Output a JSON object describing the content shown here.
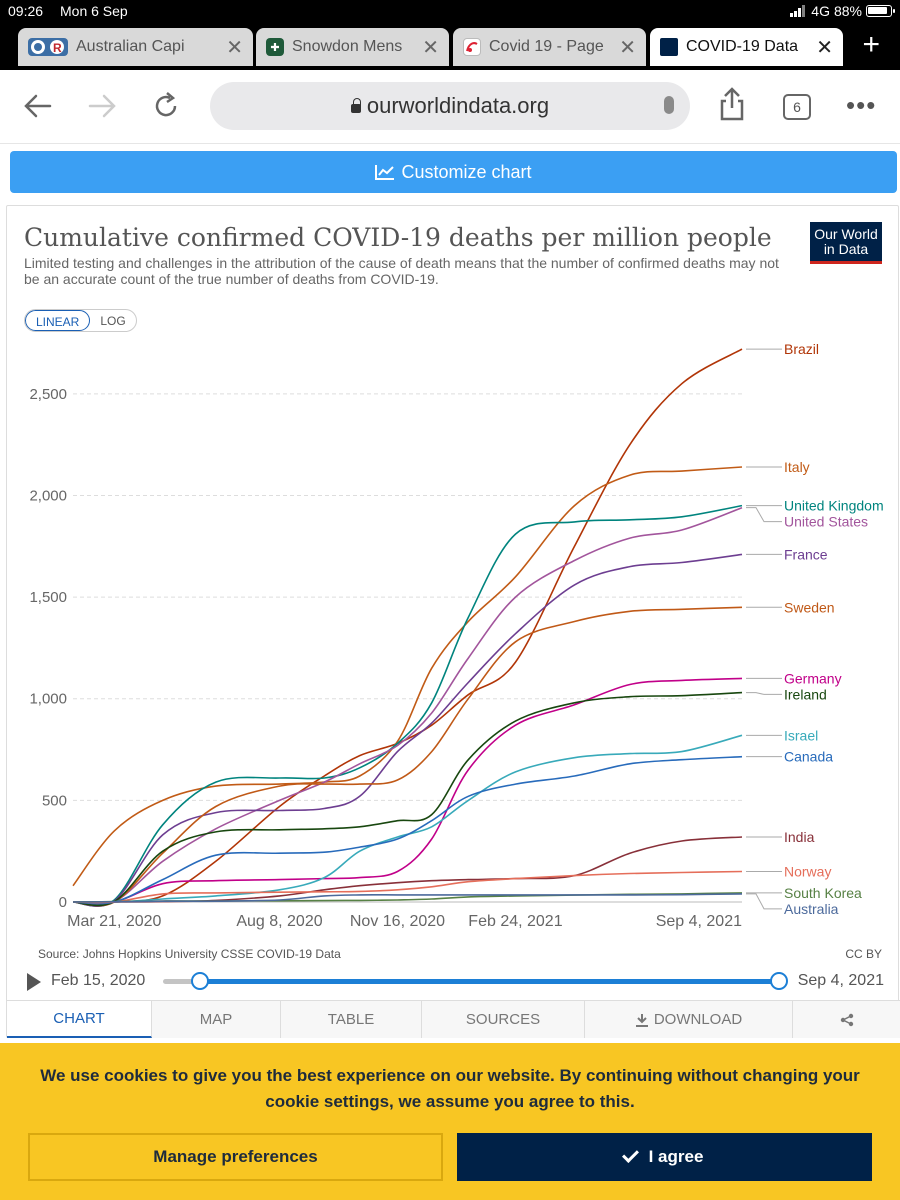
{
  "status": {
    "time": "09:26",
    "date": "Mon 6 Sep",
    "network": "4G",
    "battery": "88%"
  },
  "tabs": [
    {
      "label": "Australian Capi",
      "icon": "australian-capital-icon",
      "active": false
    },
    {
      "label": "Snowdon Mens",
      "icon": "snowdon-icon",
      "active": false
    },
    {
      "label": "Covid 19 - Page",
      "icon": "covid-page-icon",
      "active": false
    },
    {
      "label": "COVID-19 Data",
      "icon": "owid-favicon-icon",
      "active": true
    }
  ],
  "address": {
    "url": "ourworldindata.org",
    "tab_count": "6"
  },
  "customize": {
    "label": "Customize chart"
  },
  "chart": {
    "title": "Cumulative confirmed COVID-19 deaths per million people",
    "subtitle": "Limited testing and challenges in the attribution of the cause of death means that the number of confirmed deaths may not be an accurate count of the true number of deaths from COVID-19.",
    "logo_line1": "Our World",
    "logo_line2": "in Data",
    "scale_linear": "LINEAR",
    "scale_log": "LOG",
    "source": "Source: Johns Hopkins University CSSE COVID-19 Data",
    "license": "CC BY"
  },
  "timeline": {
    "start": "Feb 15, 2020",
    "end": "Sep 4, 2021"
  },
  "bottom_tabs": {
    "chart": "CHART",
    "map": "MAP",
    "table": "TABLE",
    "sources": "SOURCES",
    "download": "DOWNLOAD"
  },
  "cookie": {
    "text": "We use cookies to give you the best experience on our website. By continuing without changing your cookie settings, we assume you agree to this.",
    "manage": "Manage preferences",
    "agree": "I agree"
  },
  "chart_data": {
    "type": "line",
    "x_ticks": [
      "Mar 21, 2020",
      "Aug 8, 2020",
      "Nov 16, 2020",
      "Feb 24, 2021",
      "Sep 4, 2021"
    ],
    "y_ticks": [
      "0",
      "500",
      "1,000",
      "1,500",
      "2,000",
      "2,500"
    ],
    "ylim": [
      0,
      2750
    ],
    "xlim": [
      "2020-02-15",
      "2021-09-04"
    ],
    "grid": "horizontal dashed",
    "x": [
      "2020-02-15",
      "2020-03-21",
      "2020-05-01",
      "2020-06-15",
      "2020-08-08",
      "2020-09-15",
      "2020-10-15",
      "2020-11-16",
      "2020-12-15",
      "2021-01-15",
      "2021-02-24",
      "2021-04-15",
      "2021-06-01",
      "2021-07-15",
      "2021-09-04"
    ],
    "series": [
      {
        "name": "Brazil",
        "color": "#b13507",
        "values": [
          0,
          0,
          30,
          200,
          470,
          620,
          720,
          780,
          870,
          1020,
          1180,
          1750,
          2250,
          2550,
          2720
        ]
      },
      {
        "name": "Italy",
        "color": "#c15b16",
        "values": [
          80,
          350,
          500,
          570,
          580,
          590,
          620,
          790,
          1150,
          1380,
          1600,
          1950,
          2100,
          2120,
          2140
        ]
      },
      {
        "name": "United Kingdom",
        "color": "#00847e",
        "values": [
          0,
          10,
          380,
          590,
          610,
          610,
          660,
          780,
          980,
          1400,
          1810,
          1870,
          1880,
          1895,
          1950
        ]
      },
      {
        "name": "United States",
        "color": "#a2559c",
        "values": [
          0,
          2,
          200,
          360,
          500,
          590,
          680,
          770,
          930,
          1200,
          1500,
          1680,
          1790,
          1830,
          1940
        ]
      },
      {
        "name": "France",
        "color": "#6d3e91",
        "values": [
          0,
          5,
          330,
          440,
          450,
          460,
          520,
          740,
          880,
          1080,
          1320,
          1560,
          1650,
          1670,
          1710
        ]
      },
      {
        "name": "Sweden",
        "color": "#c05917",
        "values": [
          0,
          0,
          240,
          470,
          570,
          580,
          580,
          600,
          740,
          1000,
          1280,
          1380,
          1430,
          1440,
          1450
        ]
      },
      {
        "name": "Germany",
        "color": "#c10089",
        "values": [
          0,
          0,
          90,
          105,
          110,
          115,
          120,
          150,
          310,
          650,
          870,
          970,
          1070,
          1090,
          1100
        ]
      },
      {
        "name": "Ireland",
        "color": "#18470f",
        "values": [
          0,
          2,
          250,
          345,
          355,
          360,
          370,
          400,
          430,
          700,
          890,
          980,
          1010,
          1015,
          1030
        ]
      },
      {
        "name": "Israel",
        "color": "#38aaba",
        "values": [
          0,
          0,
          15,
          30,
          60,
          120,
          250,
          320,
          370,
          500,
          640,
          710,
          730,
          740,
          820
        ]
      },
      {
        "name": "Canada",
        "color": "#286bbb",
        "values": [
          0,
          0,
          110,
          230,
          240,
          245,
          270,
          310,
          400,
          520,
          580,
          620,
          680,
          700,
          715
        ]
      },
      {
        "name": "India",
        "color": "#883039",
        "values": [
          0,
          0,
          2,
          8,
          30,
          60,
          80,
          95,
          105,
          110,
          115,
          130,
          240,
          300,
          320
        ]
      },
      {
        "name": "Norway",
        "color": "#e56e5a",
        "values": [
          0,
          0,
          40,
          45,
          48,
          50,
          52,
          60,
          75,
          100,
          115,
          130,
          140,
          145,
          150
        ]
      },
      {
        "name": "South Korea",
        "color": "#578145",
        "values": [
          0,
          2,
          5,
          5,
          6,
          7,
          8,
          10,
          15,
          25,
          30,
          34,
          38,
          40,
          45
        ]
      },
      {
        "name": "Australia",
        "color": "#4c6a9c",
        "values": [
          0,
          1,
          4,
          4,
          10,
          30,
          35,
          35,
          35,
          35,
          35,
          35,
          35,
          36,
          40
        ]
      }
    ]
  }
}
